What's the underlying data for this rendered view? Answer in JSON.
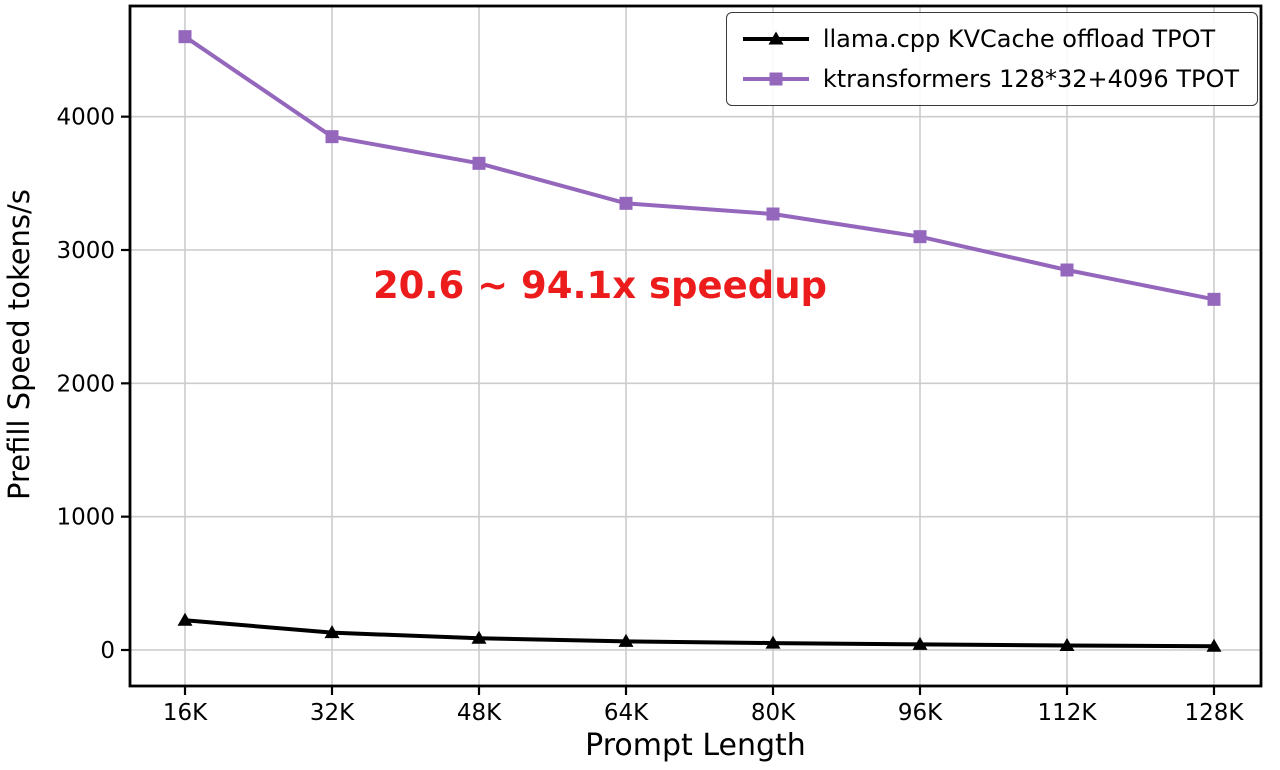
{
  "chart_data": {
    "type": "line",
    "title": "",
    "xlabel": "Prompt Length",
    "ylabel": "Prefill Speed tokens/s",
    "categories": [
      "16K",
      "32K",
      "48K",
      "64K",
      "80K",
      "96K",
      "112K",
      "128K"
    ],
    "yticks": [
      0,
      1000,
      2000,
      3000,
      4000
    ],
    "ylim": [
      -270,
      4830
    ],
    "grid": true,
    "legend_position": "top-right",
    "annotation": {
      "text": "20.6 ~ 94.1x speedup",
      "color": "#ed1c1c"
    },
    "series": [
      {
        "name": "llama.cpp KVCache offload TPOT",
        "color": "#000000",
        "marker": "triangle",
        "values": [
          223,
          130,
          88,
          65,
          52,
          42,
          34,
          28
        ]
      },
      {
        "name": "ktransformers 128*32+4096 TPOT",
        "color": "#9467bd",
        "marker": "square",
        "values": [
          4600,
          3850,
          3650,
          3350,
          3270,
          3100,
          2850,
          2630
        ]
      }
    ]
  }
}
